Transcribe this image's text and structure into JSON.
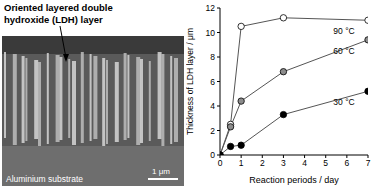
{
  "chart_data": {
    "type": "line",
    "x_label": "Reaction periods / day",
    "y_label": "Thickness of LDH layer / μm",
    "x": [
      0,
      0.5,
      1,
      3,
      7
    ],
    "xlim": [
      0,
      7
    ],
    "xticks": [
      0,
      1,
      2,
      3,
      4,
      5,
      6,
      7
    ],
    "ylim": [
      0,
      12
    ],
    "yticks": [
      0,
      2,
      4,
      6,
      8,
      10,
      12
    ],
    "grid": false,
    "marker": "circle",
    "series": [
      {
        "name": "90 °C",
        "color": "#ffffff",
        "values": [
          0,
          2.5,
          10.5,
          11.2,
          11.0
        ]
      },
      {
        "name": "60 °C",
        "color": "#8c8c8c",
        "values": [
          0,
          2.3,
          4.4,
          6.8,
          9.4
        ]
      },
      {
        "name": "30 °C",
        "color": "#000000",
        "values": [
          0,
          0.7,
          0.8,
          3.3,
          5.2
        ]
      }
    ]
  },
  "micrograph": {
    "label_lines": [
      "Oriented layered double",
      "hydroxide (LDH) layer"
    ],
    "substrate_label": "Aluminium substrate",
    "scale_bar": "1 μm"
  }
}
